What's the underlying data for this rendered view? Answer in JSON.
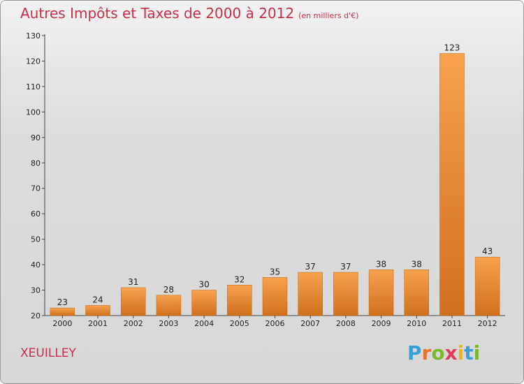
{
  "title": "Autres Impôts et Taxes de 2000 à 2012",
  "unit": "(en milliers d'€)",
  "commune": "XEUILLEY",
  "logo": {
    "text": "Proxiti",
    "letters": [
      "P",
      "r",
      "o",
      "x",
      "i",
      "t",
      "i"
    ],
    "colors": [
      "#3a9fd8",
      "#e8732a",
      "#7ab92e",
      "#e23a5a",
      "#f0b418",
      "#3a9fd8",
      "#7ab92e"
    ]
  },
  "colors": {
    "bar_top": "#f7a24e",
    "bar_bottom": "#d0701c",
    "title": "#c8304a"
  },
  "chart_data": {
    "type": "bar",
    "categories": [
      "2000",
      "2001",
      "2002",
      "2003",
      "2004",
      "2005",
      "2006",
      "2007",
      "2008",
      "2009",
      "2010",
      "2011",
      "2012"
    ],
    "values": [
      23,
      24,
      31,
      28,
      30,
      32,
      35,
      37,
      37,
      38,
      38,
      123,
      43
    ],
    "ylim": [
      20,
      130
    ],
    "yticks": [
      20,
      30,
      40,
      50,
      60,
      70,
      80,
      90,
      100,
      110,
      120,
      130
    ],
    "grid": false,
    "legend": "none"
  }
}
